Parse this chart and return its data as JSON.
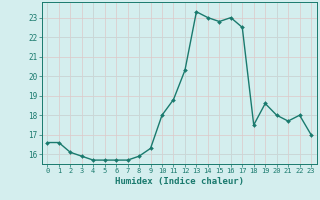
{
  "x": [
    0,
    1,
    2,
    3,
    4,
    5,
    6,
    7,
    8,
    9,
    10,
    11,
    12,
    13,
    14,
    15,
    16,
    17,
    18,
    19,
    20,
    21,
    22,
    23
  ],
  "y": [
    16.6,
    16.6,
    16.1,
    15.9,
    15.7,
    15.7,
    15.7,
    15.7,
    15.9,
    16.3,
    18.0,
    18.8,
    20.3,
    23.3,
    23.0,
    22.8,
    23.0,
    22.5,
    17.5,
    18.6,
    18.0,
    17.7,
    18.0,
    17.0
  ],
  "line_color": "#1a7a6e",
  "marker": "D",
  "marker_size": 2.0,
  "bg_color": "#d4eeee",
  "grid_color": "#c8d8d8",
  "grid_color_pink": "#ddc8c8",
  "xlabel": "Humidex (Indice chaleur)",
  "ylim": [
    15.5,
    23.8
  ],
  "xlim": [
    -0.5,
    23.5
  ],
  "yticks": [
    16,
    17,
    18,
    19,
    20,
    21,
    22,
    23
  ],
  "xticks": [
    0,
    1,
    2,
    3,
    4,
    5,
    6,
    7,
    8,
    9,
    10,
    11,
    12,
    13,
    14,
    15,
    16,
    17,
    18,
    19,
    20,
    21,
    22,
    23
  ],
  "xlabel_fontsize": 6.5,
  "tick_fontsize": 5.5,
  "line_width": 1.0
}
